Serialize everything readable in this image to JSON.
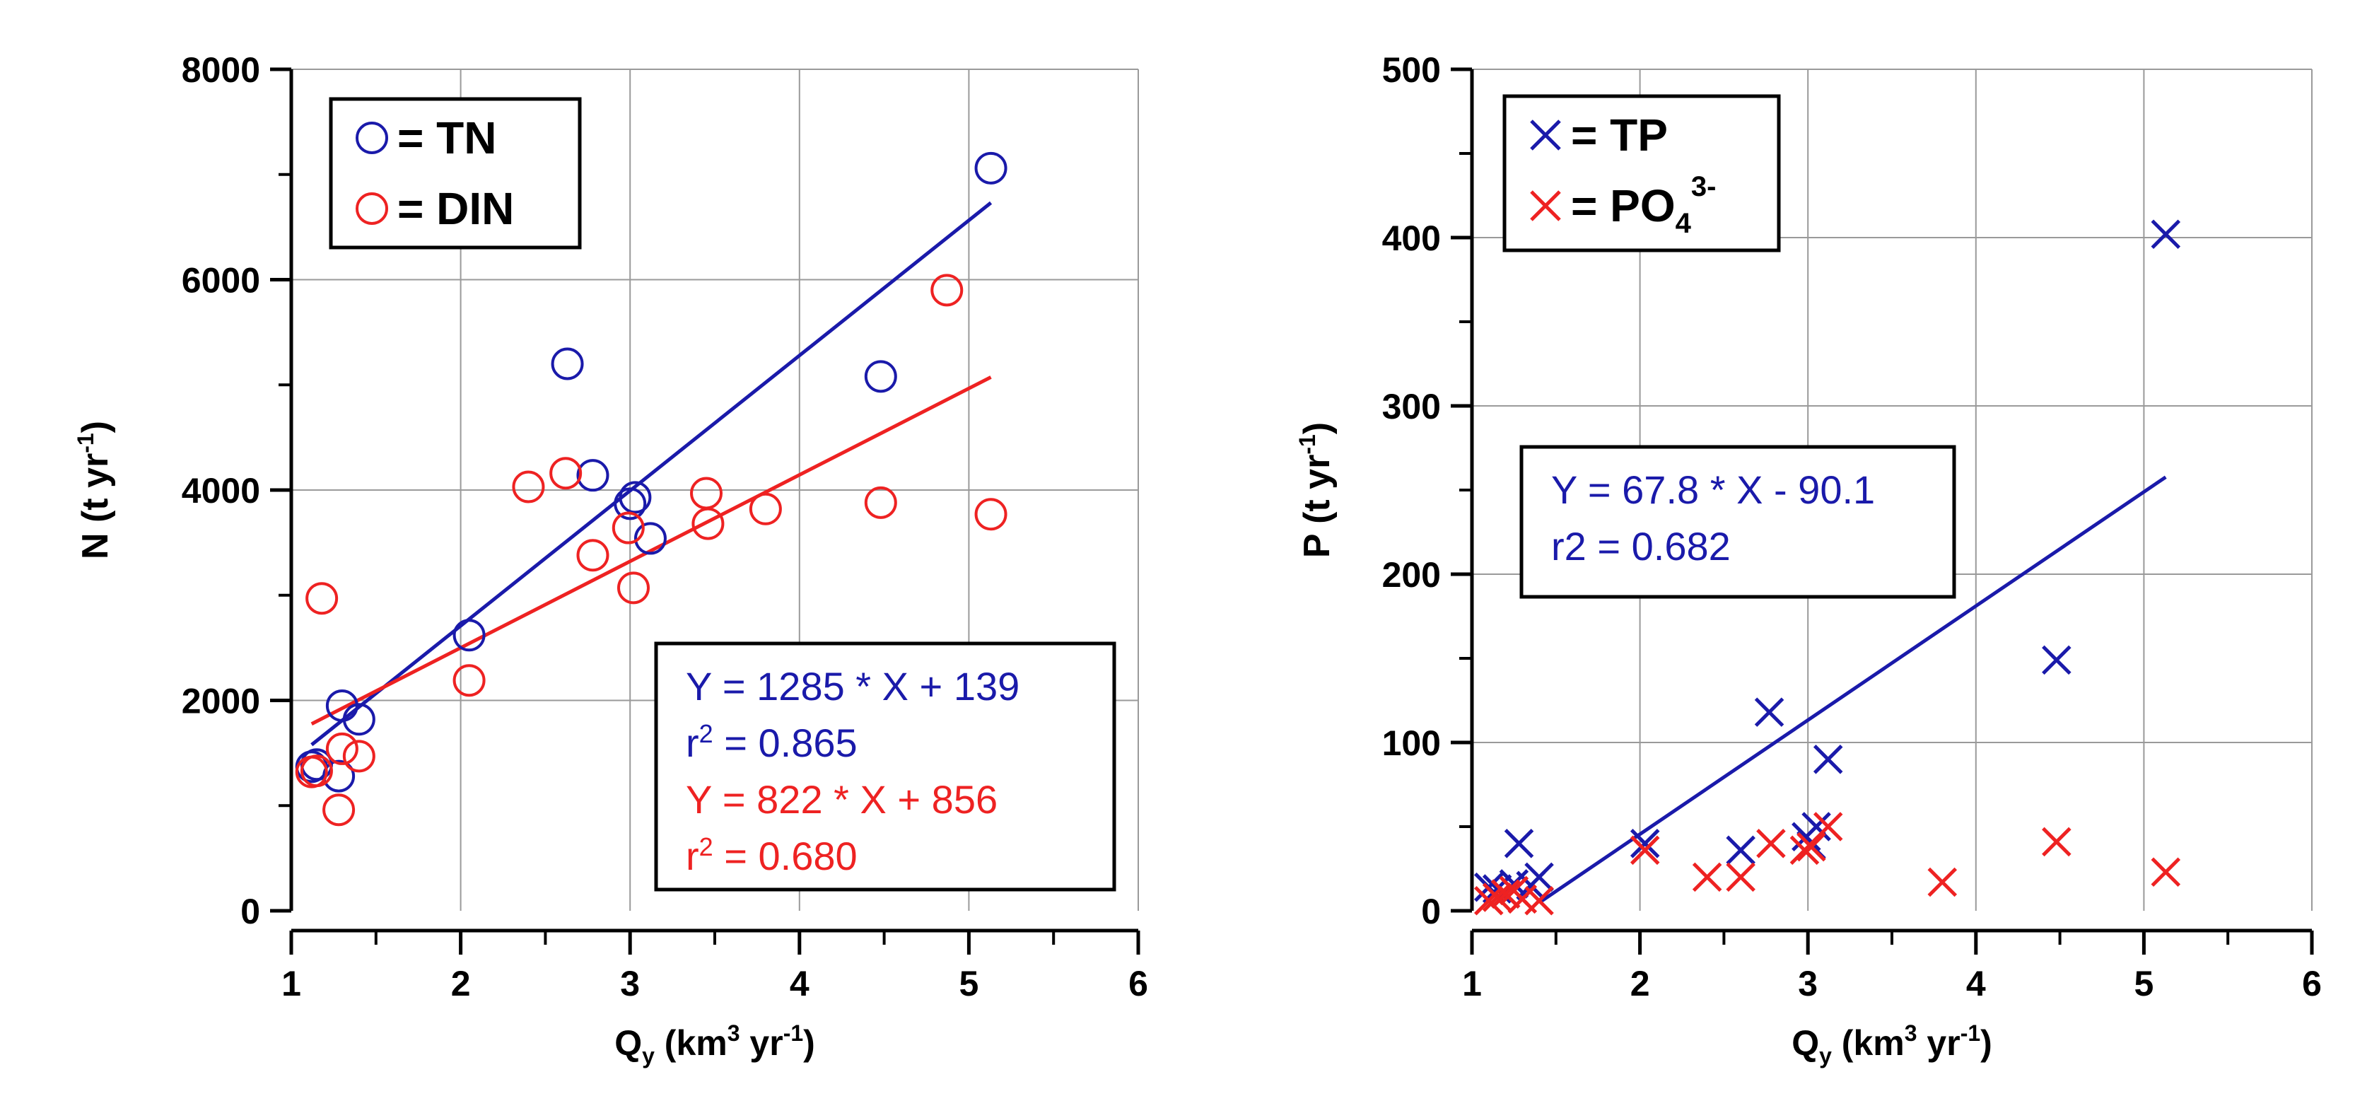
{
  "charts": [
    {
      "id": "left",
      "type": "scatter",
      "xlabel": {
        "main": "Q",
        "sub": "y",
        "unit": " (km",
        "sup": "3",
        "unit2": " yr",
        "sup2": "-1",
        "tail": ")"
      },
      "ylabel": {
        "main": "N (t yr",
        "sup": "-1",
        "tail": ")"
      },
      "xlim": [
        1,
        6
      ],
      "ylim": [
        0,
        8000
      ],
      "xticks": [
        1,
        2,
        3,
        4,
        5,
        6
      ],
      "xtick_labels": [
        "1",
        "2",
        "3",
        "4",
        "5",
        "6"
      ],
      "yticks": [
        0,
        2000,
        4000,
        6000,
        8000
      ],
      "ytick_labels": [
        "0",
        "2000",
        "4000",
        "6000",
        "8000"
      ],
      "grid": true,
      "legend": {
        "position": "top-left",
        "items": [
          {
            "marker": "circle",
            "color": "#1a1aaa",
            "label": "= TN"
          },
          {
            "marker": "circle",
            "color": "#ee2222",
            "label": "= DIN"
          }
        ]
      },
      "annotation": {
        "position": "bottom-right",
        "lines": [
          {
            "color": "#1a1aaa",
            "text": "Y = 1285 * X + 139"
          },
          {
            "color": "#1a1aaa",
            "pre": "r",
            "sup": "2",
            "text": " = 0.865"
          },
          {
            "color": "#ee2222",
            "text": "Y = 822 * X + 856"
          },
          {
            "color": "#ee2222",
            "pre": "r",
            "sup": "2",
            "text": " = 0.680"
          }
        ]
      },
      "series": [
        {
          "name": "TN",
          "marker": "circle",
          "color": "#1a1aaa",
          "x": [
            1.12,
            1.15,
            1.28,
            1.3,
            1.4,
            2.05,
            2.63,
            2.78,
            3.0,
            3.03,
            3.12,
            4.48,
            5.13
          ],
          "y": [
            1370,
            1390,
            1280,
            1950,
            1820,
            2620,
            5200,
            4140,
            3870,
            3930,
            3540,
            5080,
            7060
          ],
          "fit": {
            "slope": 1285,
            "intercept": 139,
            "x0": 1.12,
            "x1": 5.13
          }
        },
        {
          "name": "DIN",
          "marker": "circle",
          "color": "#ee2222",
          "x": [
            1.12,
            1.15,
            1.18,
            1.28,
            1.3,
            1.4,
            2.05,
            2.4,
            2.62,
            2.78,
            2.99,
            3.02,
            3.45,
            3.46,
            3.8,
            4.48,
            4.87,
            5.13
          ],
          "y": [
            1320,
            1330,
            2970,
            960,
            1540,
            1470,
            2190,
            4030,
            4160,
            3380,
            3640,
            3070,
            3970,
            3680,
            3820,
            3880,
            5900,
            3770
          ],
          "fit": {
            "slope": 822,
            "intercept": 856,
            "x0": 1.12,
            "x1": 5.13
          }
        }
      ]
    },
    {
      "id": "right",
      "type": "scatter",
      "xlabel": {
        "main": "Q",
        "sub": "y",
        "unit": " (km",
        "sup": "3",
        "unit2": " yr",
        "sup2": "-1",
        "tail": ")"
      },
      "ylabel": {
        "main": "P (t yr",
        "sup": "-1",
        "tail": ")"
      },
      "xlim": [
        1,
        6
      ],
      "ylim": [
        0,
        500
      ],
      "xticks": [
        1,
        2,
        3,
        4,
        5,
        6
      ],
      "xtick_labels": [
        "1",
        "2",
        "3",
        "4",
        "5",
        "6"
      ],
      "yticks": [
        0,
        100,
        200,
        300,
        400,
        500
      ],
      "ytick_labels": [
        "0",
        "100",
        "200",
        "300",
        "400",
        "500"
      ],
      "grid": true,
      "legend": {
        "position": "top-left",
        "items": [
          {
            "marker": "cross",
            "color": "#1a1aaa",
            "label": "= TP"
          },
          {
            "marker": "cross",
            "color": "#ee2222",
            "label": "= PO",
            "sub": "4",
            "sup": "3-"
          }
        ]
      },
      "annotation": {
        "position": "middle-left",
        "lines": [
          {
            "color": "#1a1aaa",
            "text": "Y = 67.8 * X - 90.1"
          },
          {
            "color": "#1a1aaa",
            "text": "r2 = 0.682"
          }
        ]
      },
      "series": [
        {
          "name": "TP",
          "marker": "cross",
          "color": "#1a1aaa",
          "x": [
            1.1,
            1.15,
            1.2,
            1.25,
            1.28,
            1.35,
            1.4,
            2.03,
            2.6,
            2.77,
            2.99,
            3.02,
            3.05,
            3.12,
            4.48,
            5.13
          ],
          "y": [
            14,
            13,
            10,
            16,
            40,
            15,
            20,
            40,
            36,
            118,
            44,
            39,
            50,
            90,
            149,
            402
          ],
          "fit": {
            "slope": 67.8,
            "intercept": -90.1,
            "x0": 1.4,
            "x1": 5.13
          }
        },
        {
          "name": "PO43-",
          "marker": "cross",
          "color": "#ee2222",
          "x": [
            1.1,
            1.15,
            1.2,
            1.25,
            1.3,
            1.4,
            2.03,
            2.4,
            2.6,
            2.78,
            2.98,
            3.02,
            3.12,
            3.8,
            4.48,
            5.13
          ],
          "y": [
            6,
            8,
            10,
            12,
            7,
            6,
            36,
            20,
            20,
            40,
            36,
            38,
            50,
            17,
            41,
            23
          ]
        }
      ]
    }
  ]
}
